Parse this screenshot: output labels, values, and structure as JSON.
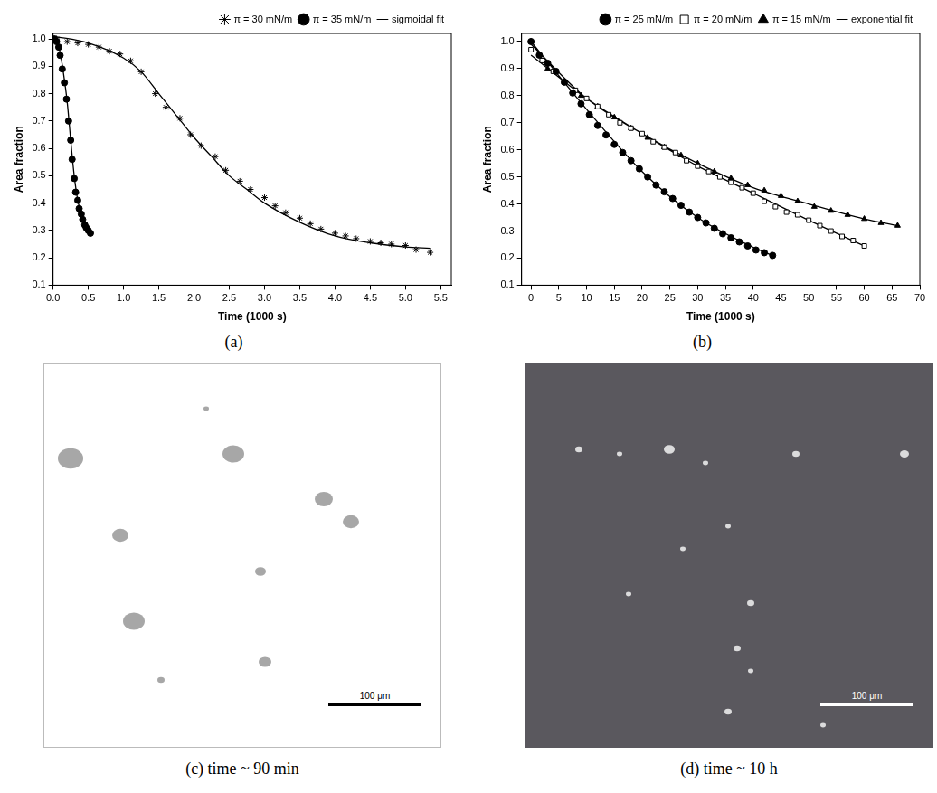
{
  "chart_data": [
    {
      "type": "scatter",
      "caption": "(a)",
      "x_label": "Time (1000 s)",
      "y_label": "Area fraction",
      "xlim": [
        0,
        5.65
      ],
      "ylim": [
        0.1,
        1.02
      ],
      "xticks": [
        {
          "value": 0,
          "label": "0.0"
        },
        0.5,
        {
          "value": 1,
          "label": "1.0"
        },
        1.5,
        {
          "value": 2,
          "label": "2.0"
        },
        2.5,
        {
          "value": 3,
          "label": "3.0"
        },
        3.5,
        {
          "value": 4,
          "label": "4.0"
        },
        4.5,
        {
          "value": 5,
          "label": "5.0"
        },
        5.5
      ],
      "yticks": [
        0.1,
        0.2,
        0.3,
        0.4,
        0.5,
        0.6,
        0.7,
        0.8,
        0.9,
        {
          "value": 1,
          "label": "1.0"
        }
      ],
      "grid": false,
      "legend": "top right",
      "series": [
        {
          "name": "π = 30 mN/m",
          "type": "scatter",
          "marker": "star",
          "color": "#000000",
          "x": [
            0.05,
            0.2,
            0.35,
            0.5,
            0.65,
            0.8,
            0.95,
            1.1,
            1.25,
            1.45,
            1.6,
            1.8,
            1.95,
            2.1,
            2.3,
            2.45,
            2.65,
            2.8,
            3.0,
            3.15,
            3.3,
            3.5,
            3.65,
            3.8,
            4.0,
            4.15,
            4.3,
            4.5,
            4.65,
            4.8,
            5.0,
            5.15,
            5.35
          ],
          "values": [
            1.0,
            0.99,
            0.985,
            0.98,
            0.97,
            0.955,
            0.945,
            0.92,
            0.88,
            0.8,
            0.75,
            0.71,
            0.65,
            0.61,
            0.57,
            0.52,
            0.48,
            0.45,
            0.42,
            0.39,
            0.365,
            0.345,
            0.325,
            0.305,
            0.29,
            0.28,
            0.27,
            0.26,
            0.255,
            0.25,
            0.245,
            0.23,
            0.22
          ]
        },
        {
          "name": "π = 35 mN/m",
          "type": "scatter",
          "marker": "circle",
          "color": "#000000",
          "x": [
            0.02,
            0.05,
            0.08,
            0.1,
            0.13,
            0.16,
            0.19,
            0.22,
            0.25,
            0.27,
            0.3,
            0.32,
            0.35,
            0.37,
            0.4,
            0.42,
            0.45,
            0.47,
            0.5,
            0.53
          ],
          "values": [
            1.0,
            0.99,
            0.97,
            0.94,
            0.89,
            0.84,
            0.78,
            0.7,
            0.63,
            0.56,
            0.49,
            0.44,
            0.41,
            0.38,
            0.36,
            0.34,
            0.32,
            0.31,
            0.3,
            0.29
          ]
        },
        {
          "name": "sigmoidal fit",
          "type": "line",
          "marker": "none",
          "line_style": "solid",
          "color": "#000000",
          "x": [
            0,
            0.5,
            1,
            1.25,
            1.5,
            1.75,
            2,
            2.25,
            2.5,
            2.75,
            3,
            3.5,
            4,
            4.5,
            5,
            5.35,
            null,
            0,
            0.05,
            0.1,
            0.15,
            0.2,
            0.25,
            0.3,
            0.35,
            0.4,
            0.45,
            0.5,
            0.53
          ],
          "values": [
            1.01,
            0.985,
            0.93,
            0.88,
            0.8,
            0.72,
            0.64,
            0.57,
            0.5,
            0.45,
            0.4,
            0.33,
            0.28,
            0.255,
            0.24,
            0.235,
            null,
            1.0,
            0.99,
            0.95,
            0.87,
            0.77,
            0.63,
            0.5,
            0.41,
            0.36,
            0.32,
            0.3,
            0.29
          ]
        }
      ]
    },
    {
      "type": "scatter",
      "caption": "(b)",
      "x_label": "Time (1000 s)",
      "y_label": "Area fraction",
      "xlim": [
        -1.7,
        70
      ],
      "ylim": [
        0.1,
        1.03
      ],
      "xticks": [
        0,
        5,
        10,
        15,
        20,
        25,
        30,
        35,
        40,
        45,
        50,
        55,
        60,
        65,
        70
      ],
      "yticks": [
        0.1,
        0.2,
        0.3,
        0.4,
        0.5,
        0.6,
        0.7,
        0.8,
        0.9,
        {
          "value": 1,
          "label": "1.0"
        }
      ],
      "grid": false,
      "legend": "top right",
      "series": [
        {
          "name": "π = 25 mN/m",
          "type": "scatter",
          "marker": "circle",
          "color": "#000000",
          "x": [
            0,
            1.5,
            3,
            4.5,
            6,
            7.5,
            9,
            10.5,
            12,
            13.5,
            15,
            16.5,
            18,
            19.5,
            21,
            22.5,
            24,
            25.5,
            27,
            28.5,
            30,
            31.5,
            33,
            34.5,
            36,
            37.5,
            39,
            40.5,
            42,
            43.5
          ],
          "values": [
            1.0,
            0.95,
            0.92,
            0.89,
            0.85,
            0.81,
            0.77,
            0.73,
            0.69,
            0.655,
            0.62,
            0.59,
            0.56,
            0.53,
            0.5,
            0.47,
            0.445,
            0.42,
            0.395,
            0.37,
            0.35,
            0.33,
            0.31,
            0.29,
            0.275,
            0.26,
            0.245,
            0.23,
            0.22,
            0.21
          ]
        },
        {
          "name": "π = 20 mN/m",
          "type": "scatter",
          "marker": "square_open",
          "color": "#000000",
          "x": [
            0,
            2,
            4,
            6,
            8,
            10,
            12,
            14,
            16,
            18,
            20,
            22,
            24,
            26,
            28,
            30,
            32,
            34,
            36,
            38,
            40,
            42,
            44,
            46,
            48,
            50,
            52,
            54,
            56,
            58,
            60
          ],
          "values": [
            0.97,
            0.93,
            0.89,
            0.85,
            0.82,
            0.79,
            0.76,
            0.73,
            0.7,
            0.68,
            0.66,
            0.63,
            0.61,
            0.59,
            0.56,
            0.54,
            0.52,
            0.5,
            0.48,
            0.46,
            0.44,
            0.41,
            0.39,
            0.37,
            0.36,
            0.34,
            0.32,
            0.3,
            0.28,
            0.265,
            0.245
          ]
        },
        {
          "name": "π = 15 mN/m",
          "type": "scatter",
          "marker": "triangle",
          "color": "#000000",
          "x": [
            0,
            1.5,
            3,
            6,
            9,
            12,
            15,
            18,
            21,
            24,
            27,
            30,
            33,
            36,
            39,
            42,
            45,
            48,
            51,
            54,
            57,
            60,
            63,
            66
          ],
          "values": [
            1.0,
            0.95,
            0.9,
            0.85,
            0.8,
            0.76,
            0.72,
            0.68,
            0.645,
            0.61,
            0.58,
            0.55,
            0.52,
            0.495,
            0.47,
            0.45,
            0.43,
            0.41,
            0.39,
            0.375,
            0.36,
            0.345,
            0.33,
            0.32
          ]
        },
        {
          "name": "exponential fit",
          "type": "line",
          "marker": "none",
          "line_style": "solid",
          "color": "#000000",
          "x": [
            0,
            10,
            20,
            30,
            40,
            43.5,
            null,
            0,
            10,
            20,
            30,
            40,
            50,
            60,
            null,
            0,
            10,
            20,
            30,
            40,
            50,
            60,
            66
          ],
          "values": [
            1.0,
            0.75,
            0.52,
            0.35,
            0.24,
            0.21,
            null,
            0.95,
            0.79,
            0.66,
            0.54,
            0.44,
            0.34,
            0.245,
            null,
            0.99,
            0.79,
            0.66,
            0.55,
            0.46,
            0.4,
            0.345,
            0.32
          ]
        }
      ]
    }
  ],
  "images": [
    {
      "caption": "(c) time ~ 90 min",
      "scale_bar": "100 μm"
    },
    {
      "caption": "(d) time ~ 10 h",
      "scale_bar": "100 μm"
    }
  ]
}
